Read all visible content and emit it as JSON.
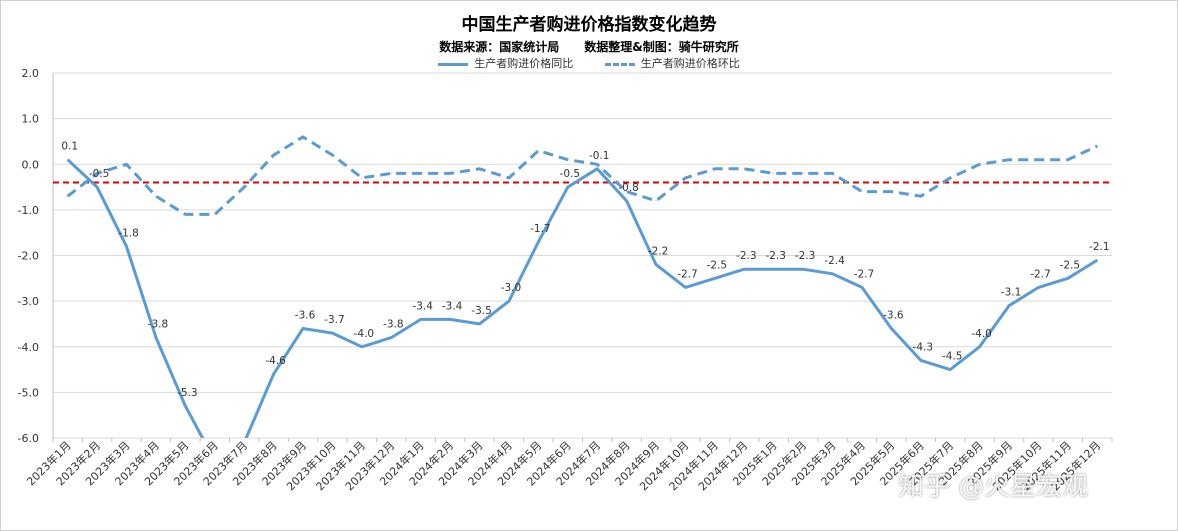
{
  "title": "中国生产者购进价格指数变化趋势",
  "subtitle": "数据来源：国家统计局      数据整理&制图：骑牛研究所",
  "watermark": "知乎 @火星宏观",
  "chart_data": {
    "type": "line",
    "categories": [
      "2023年1月",
      "2023年2月",
      "2023年3月",
      "2023年4月",
      "2023年5月",
      "2023年6月",
      "2023年7月",
      "2023年8月",
      "2023年9月",
      "2023年10月",
      "2023年11月",
      "2023年12月",
      "2024年1月",
      "2024年2月",
      "2024年3月",
      "2024年4月",
      "2024年5月",
      "2024年6月",
      "2024年7月",
      "2024年8月",
      "2024年9月",
      "2024年10月",
      "2024年11月",
      "2024年12月",
      "2025年1月",
      "2025年2月",
      "2025年3月",
      "2025年4月",
      "2025年5月",
      "2025年6月",
      "2025年7月",
      "2025年8月",
      "2025年9月",
      "2025年10月",
      "2025年11月",
      "2025年12月"
    ],
    "series": [
      {
        "name": "生产者购进价格同比",
        "style": "solid",
        "color": "#5b9bd5",
        "values": [
          0.1,
          -0.5,
          -1.8,
          -3.8,
          -5.3,
          -6.5,
          -6.1,
          -4.6,
          -3.6,
          -3.7,
          -4.0,
          -3.8,
          -3.4,
          -3.4,
          -3.5,
          -3.0,
          -1.7,
          -0.5,
          -0.1,
          -0.8,
          -2.2,
          -2.7,
          -2.5,
          -2.3,
          -2.3,
          -2.3,
          -2.4,
          -2.7,
          -3.6,
          -4.3,
          -4.5,
          -4.0,
          -3.1,
          -2.7,
          -2.5,
          -2.1
        ],
        "labels": [
          "0.1",
          "-0.5",
          "-1.8",
          "-3.8",
          "-5.3",
          "",
          "",
          "-4.6",
          "-3.6",
          "-3.7",
          "-4.0",
          "-3.8",
          "-3.4",
          "-3.4",
          "-3.5",
          "-3.0",
          "-1.7",
          "-0.5",
          "-0.1",
          "-0.8",
          "-2.2",
          "-2.7",
          "-2.5",
          "-2.3",
          "-2.3",
          "-2.3",
          "-2.4",
          "-2.7",
          "-3.6",
          "-4.3",
          "-4.5",
          "-4.0",
          "-3.1",
          "-2.7",
          "-2.5",
          "-2.1"
        ]
      },
      {
        "name": "生产者购进价格环比",
        "style": "dashed",
        "color": "#5b9bd5",
        "values": [
          -0.7,
          -0.2,
          0.0,
          -0.7,
          -1.1,
          -1.1,
          -0.5,
          0.2,
          0.6,
          0.2,
          -0.3,
          -0.2,
          -0.2,
          -0.2,
          -0.1,
          -0.3,
          0.3,
          0.1,
          0.0,
          -0.6,
          -0.8,
          -0.3,
          -0.1,
          -0.1,
          -0.2,
          -0.2,
          -0.2,
          -0.6,
          -0.6,
          -0.7,
          -0.3,
          0.0,
          0.1,
          0.1,
          0.1,
          0.4
        ]
      }
    ],
    "reference_line": {
      "value": -0.4,
      "color": "#e00000",
      "style": "dashed"
    },
    "ylim": [
      -6.0,
      2.0
    ],
    "yticks": [
      "2.0",
      "1.0",
      "0.0",
      "-1.0",
      "-2.0",
      "-3.0",
      "-4.0",
      "-5.0",
      "-6.0"
    ],
    "grid": true,
    "legend_position": "top"
  }
}
